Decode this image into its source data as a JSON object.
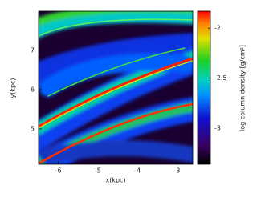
{
  "chart_data": {
    "type": "heatmap",
    "xlabel": "x(kpc)",
    "ylabel": "y(kpc)",
    "xlim": [
      -6.5,
      -2.6
    ],
    "xticks": [
      -6,
      -5,
      -4,
      -3
    ],
    "ylim": [
      4.1,
      8.0
    ],
    "yticks": [
      5,
      6,
      7
    ],
    "colorbar_label": "log column density [g/cm²]",
    "clim": [
      -3.36,
      -1.83
    ],
    "cticks": [
      -2,
      -2.5,
      -3
    ]
  }
}
